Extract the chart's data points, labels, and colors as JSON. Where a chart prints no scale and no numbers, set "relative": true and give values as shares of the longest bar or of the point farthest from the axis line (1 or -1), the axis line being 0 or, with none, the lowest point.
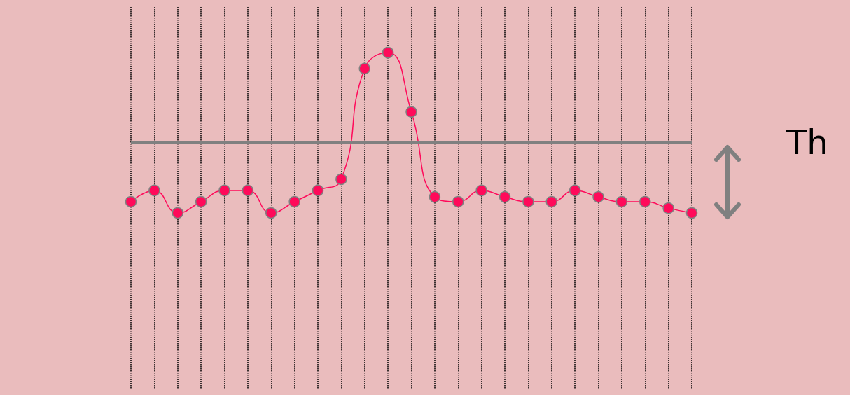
{
  "chart_data": {
    "type": "line",
    "relative": true,
    "categories": [
      null,
      null,
      null,
      null,
      null,
      null,
      null,
      null,
      null,
      null,
      null,
      null,
      null,
      null,
      null,
      null,
      null,
      null,
      null,
      null,
      null,
      null,
      null,
      null,
      null
    ],
    "series": [
      {
        "color": "#ff0a5a",
        "values": [
          0.07,
          0.14,
          0,
          0.07,
          0.14,
          0.14,
          0,
          0.07,
          0.14,
          0.21,
          0.9,
          1,
          0.63,
          0.1,
          0.07,
          0.14,
          0.1,
          0.07,
          0.07,
          0.14,
          0.1,
          0.07,
          0.07,
          0.03,
          0
        ]
      }
    ],
    "marker": "circle",
    "grid": "x",
    "ref_lines": [
      {
        "axis": "y",
        "value": 0.44,
        "label": "Th",
        "color": "#808080"
      }
    ]
  }
}
